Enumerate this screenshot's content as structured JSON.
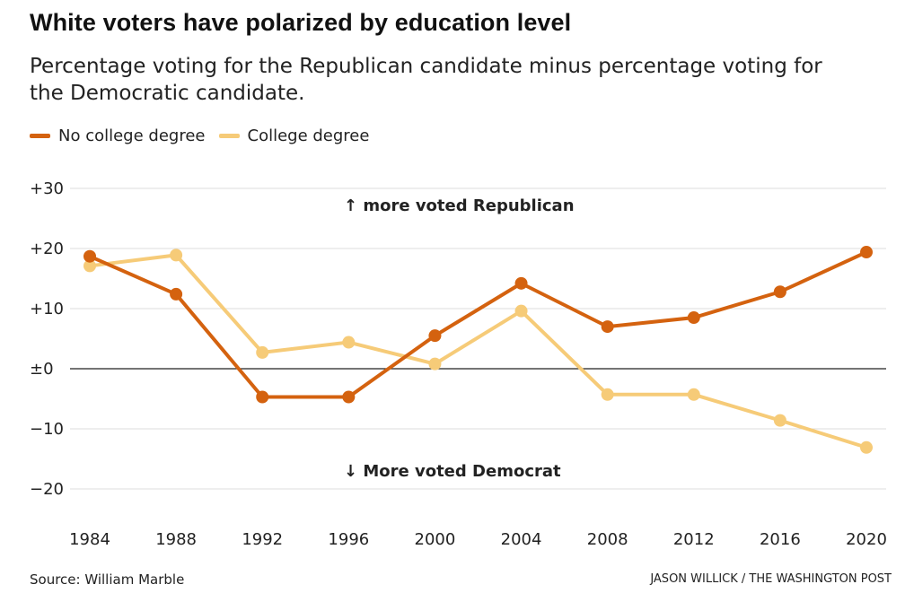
{
  "chart_data": {
    "type": "line",
    "title": "White voters have polarized by education level",
    "subtitle": "Percentage voting for the Republican candidate minus percentage voting for the Democratic candidate.",
    "x": [
      1984,
      1988,
      1992,
      1996,
      2000,
      2004,
      2008,
      2012,
      2016,
      2020
    ],
    "x_tick_labels": [
      "1984",
      "1988",
      "1992",
      "1996",
      "2000",
      "2004",
      "2008",
      "2012",
      "2016",
      "2020"
    ],
    "ylim": [
      -20,
      30
    ],
    "y_ticks": [
      30,
      20,
      10,
      0,
      -10,
      -20
    ],
    "y_tick_labels": [
      "+30",
      "+20",
      "+10",
      "±0",
      "−10",
      "−20"
    ],
    "grid": true,
    "legend_position": "top-left",
    "series": [
      {
        "name": "No college degree",
        "color": "#d4620f",
        "values": [
          18.7,
          12.4,
          -4.7,
          -4.7,
          5.5,
          14.2,
          7.0,
          8.5,
          12.8,
          19.4
        ]
      },
      {
        "name": "College degree",
        "color": "#f6cb78",
        "values": [
          17.1,
          18.9,
          2.7,
          4.4,
          0.8,
          9.6,
          -4.3,
          -4.3,
          -8.6,
          -13.1
        ]
      }
    ],
    "annotations": {
      "up": "↑ more voted Republican",
      "down": "↓ More voted Democrat"
    },
    "source": "Source: William Marble",
    "credit": "JASON WILLICK / THE WASHINGTON POST"
  }
}
